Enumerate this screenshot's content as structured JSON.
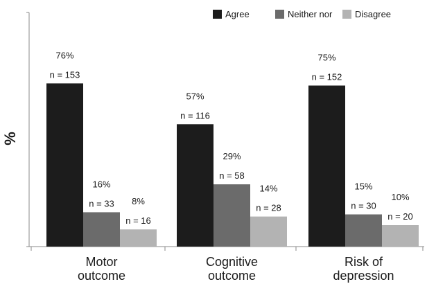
{
  "chart_data": {
    "type": "bar",
    "ylabel": "%",
    "ylim": [
      0,
      90
    ],
    "grid": false,
    "legend_position": "top-right",
    "categories": [
      [
        "Motor",
        "outcome"
      ],
      [
        "Cognitive",
        "outcome"
      ],
      [
        "Risk of",
        "depression"
      ]
    ],
    "series": [
      {
        "name": "Agree",
        "color": "#1c1c1c",
        "values": [
          76,
          57,
          75
        ],
        "pct_labels": [
          "76%",
          "57%",
          "75%"
        ],
        "n_labels": [
          "n = 153",
          "n = 116",
          "n = 152"
        ]
      },
      {
        "name": "Neither nor",
        "color": "#6b6b6b",
        "values": [
          16,
          29,
          15
        ],
        "pct_labels": [
          "16%",
          "29%",
          "15%"
        ],
        "n_labels": [
          "n = 33",
          "n = 58",
          "n = 30"
        ]
      },
      {
        "name": "Disagree",
        "color": "#b3b3b3",
        "values": [
          8,
          14,
          10
        ],
        "pct_labels": [
          "8%",
          "14%",
          "10%"
        ],
        "n_labels": [
          "n = 16",
          "n = 28",
          "n = 20"
        ]
      }
    ]
  }
}
